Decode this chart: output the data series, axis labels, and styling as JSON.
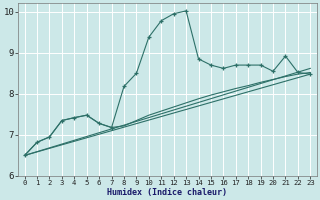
{
  "xlabel": "Humidex (Indice chaleur)",
  "background_color": "#cce8e8",
  "grid_color": "#ffffff",
  "line_color": "#2d7068",
  "xlim": [
    -0.5,
    23.5
  ],
  "ylim": [
    6.0,
    10.2
  ],
  "yticks": [
    6,
    7,
    8,
    9,
    10
  ],
  "line_main_x": [
    0,
    1,
    2,
    3,
    4,
    5,
    6,
    7,
    8,
    9,
    10,
    11,
    12,
    13,
    14,
    15,
    16,
    17,
    18,
    19,
    20,
    21,
    22,
    23
  ],
  "line_main_y": [
    6.5,
    6.82,
    6.95,
    7.35,
    7.42,
    7.48,
    7.28,
    7.18,
    8.18,
    8.5,
    9.38,
    9.78,
    9.95,
    10.02,
    8.85,
    8.7,
    8.62,
    8.7,
    8.7,
    8.7,
    8.55,
    8.92,
    8.52,
    8.48
  ],
  "line_smooth_x": [
    0,
    1,
    2,
    3,
    4,
    5,
    6,
    7,
    8,
    9,
    10,
    11,
    12,
    13,
    14,
    15,
    16,
    17,
    18,
    19,
    20,
    21,
    22,
    23
  ],
  "line_smooth_y": [
    6.5,
    6.82,
    6.95,
    7.35,
    7.42,
    7.48,
    7.28,
    7.18,
    7.22,
    7.35,
    7.48,
    7.58,
    7.68,
    7.78,
    7.88,
    7.97,
    8.05,
    8.13,
    8.2,
    8.28,
    8.35,
    8.42,
    8.48,
    8.52
  ],
  "line_trend1_x": [
    0,
    23
  ],
  "line_trend1_y": [
    6.5,
    8.48
  ],
  "line_trend2_x": [
    0,
    23
  ],
  "line_trend2_y": [
    6.5,
    8.62
  ],
  "xlabel_fontsize": 6.0,
  "ytick_fontsize": 6.5,
  "xtick_fontsize": 5.2
}
